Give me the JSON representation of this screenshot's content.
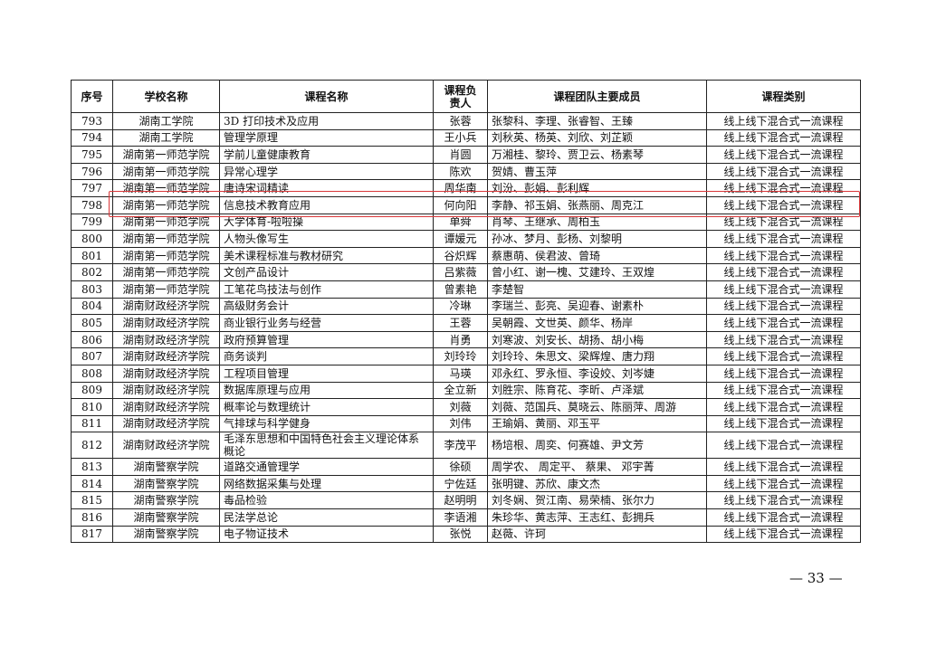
{
  "table": {
    "columns": [
      "序号",
      "学校名称",
      "课程名称",
      "课程负责人",
      "课程团队主要成员",
      "课程类别"
    ],
    "rows": [
      [
        "793",
        "湖南工学院",
        "3D 打印技术及应用",
        "张蓉",
        "张黎科、李理、张睿智、王臻",
        "线上线下混合式一流课程"
      ],
      [
        "794",
        "湖南工学院",
        "管理学原理",
        "王小兵",
        "刘秋英、杨英、刘欣、刘芷颖",
        "线上线下混合式一流课程"
      ],
      [
        "795",
        "湖南第一师范学院",
        "学前儿童健康教育",
        "肖圆",
        "万湘桂、黎玲、贾卫云、杨素琴",
        "线上线下混合式一流课程"
      ],
      [
        "796",
        "湖南第一师范学院",
        "异常心理学",
        "陈欢",
        "贺婧、曹玉萍",
        "线上线下混合式一流课程"
      ],
      [
        "797",
        "湖南第一师范学院",
        "唐诗宋词精读",
        "周华南",
        "刘汾、彭娟、彭利辉",
        "线上线下混合式一流课程"
      ],
      [
        "798",
        "湖南第一师范学院",
        "信息技术教育应用",
        "何向阳",
        "李静、祁玉娟、张燕丽、周克江",
        "线上线下混合式一流课程"
      ],
      [
        "799",
        "湖南第一师范学院",
        "大学体育-啦啦操",
        "单舜",
        "肖琴、王继承、周柏玉",
        "线上线下混合式一流课程"
      ],
      [
        "800",
        "湖南第一师范学院",
        "人物头像写生",
        "谭媛元",
        "孙冰、梦月、彭杨、刘黎明",
        "线上线下混合式一流课程"
      ],
      [
        "801",
        "湖南第一师范学院",
        "美术课程标准与教材研究",
        "谷炽辉",
        "蔡惠萌、侯君波、曾琦",
        "线上线下混合式一流课程"
      ],
      [
        "802",
        "湖南第一师范学院",
        "文创产品设计",
        "吕紫薇",
        "曾小红、谢一槐、艾建玲、王双煌",
        "线上线下混合式一流课程"
      ],
      [
        "803",
        "湖南第一师范学院",
        "工笔花鸟技法与创作",
        "曾素艳",
        "李楚智",
        "线上线下混合式一流课程"
      ],
      [
        "804",
        "湖南财政经济学院",
        "高级财务会计",
        "冷琳",
        "李瑞兰、彭亮、吴迎春、谢素朴",
        "线上线下混合式一流课程"
      ],
      [
        "805",
        "湖南财政经济学院",
        "商业银行业务与经营",
        "王蓉",
        "吴朝霞、文世英、颜华、杨岸",
        "线上线下混合式一流课程"
      ],
      [
        "806",
        "湖南财政经济学院",
        "政府预算管理",
        "肖勇",
        "刘寒波、刘安长、胡扬、胡小梅",
        "线上线下混合式一流课程"
      ],
      [
        "807",
        "湖南财政经济学院",
        "商务谈判",
        "刘玲玲",
        "刘玲玲、朱思文、梁辉煌、唐力翔",
        "线上线下混合式一流课程"
      ],
      [
        "808",
        "湖南财政经济学院",
        "工程项目管理",
        "马瑛",
        "邓永红、罗永恒、李设姣、刘岑婕",
        "线上线下混合式一流课程"
      ],
      [
        "809",
        "湖南财政经济学院",
        "数据库原理与应用",
        "全立新",
        "刘胜宗、陈育花、李昕、卢泽斌",
        "线上线下混合式一流课程"
      ],
      [
        "810",
        "湖南财政经济学院",
        "概率论与数理统计",
        "刘薇",
        "刘薇、范国兵、莫晓云、陈丽萍、周游",
        "线上线下混合式一流课程"
      ],
      [
        "811",
        "湖南财政经济学院",
        "气排球与科学健身",
        "刘伟",
        "王瑜娟、黄丽、邓玉平",
        "线上线下混合式一流课程"
      ],
      [
        "812",
        "湖南财政经济学院",
        "毛泽东思想和中国特色社会主义理论体系概论",
        "李茂平",
        "杨培根、周奕、何赛雄、尹文芳",
        "线上线下混合式一流课程"
      ],
      [
        "813",
        "湖南警察学院",
        "道路交通管理学",
        "徐硕",
        "周学农、 周定平、 蔡果、 邓宇菁",
        "线上线下混合式一流课程"
      ],
      [
        "814",
        "湖南警察学院",
        "网络数据采集与处理",
        "宁佐廷",
        "张明键、苏欣、康文杰",
        "线上线下混合式一流课程"
      ],
      [
        "815",
        "湖南警察学院",
        "毒品检验",
        "赵明明",
        "刘冬娴、贺江南、易荣楠、张尔力",
        "线上线下混合式一流课程"
      ],
      [
        "816",
        "湖南警察学院",
        "民法学总论",
        "李语湘",
        "朱珍华、黄志萍、王志红、彭拥兵",
        "线上线下混合式一流课程"
      ],
      [
        "817",
        "湖南警察学院",
        "电子物证技术",
        "张悦",
        "赵薇、许珂",
        "线上线下混合式一流课程"
      ]
    ]
  },
  "page_number": "— 33 —"
}
